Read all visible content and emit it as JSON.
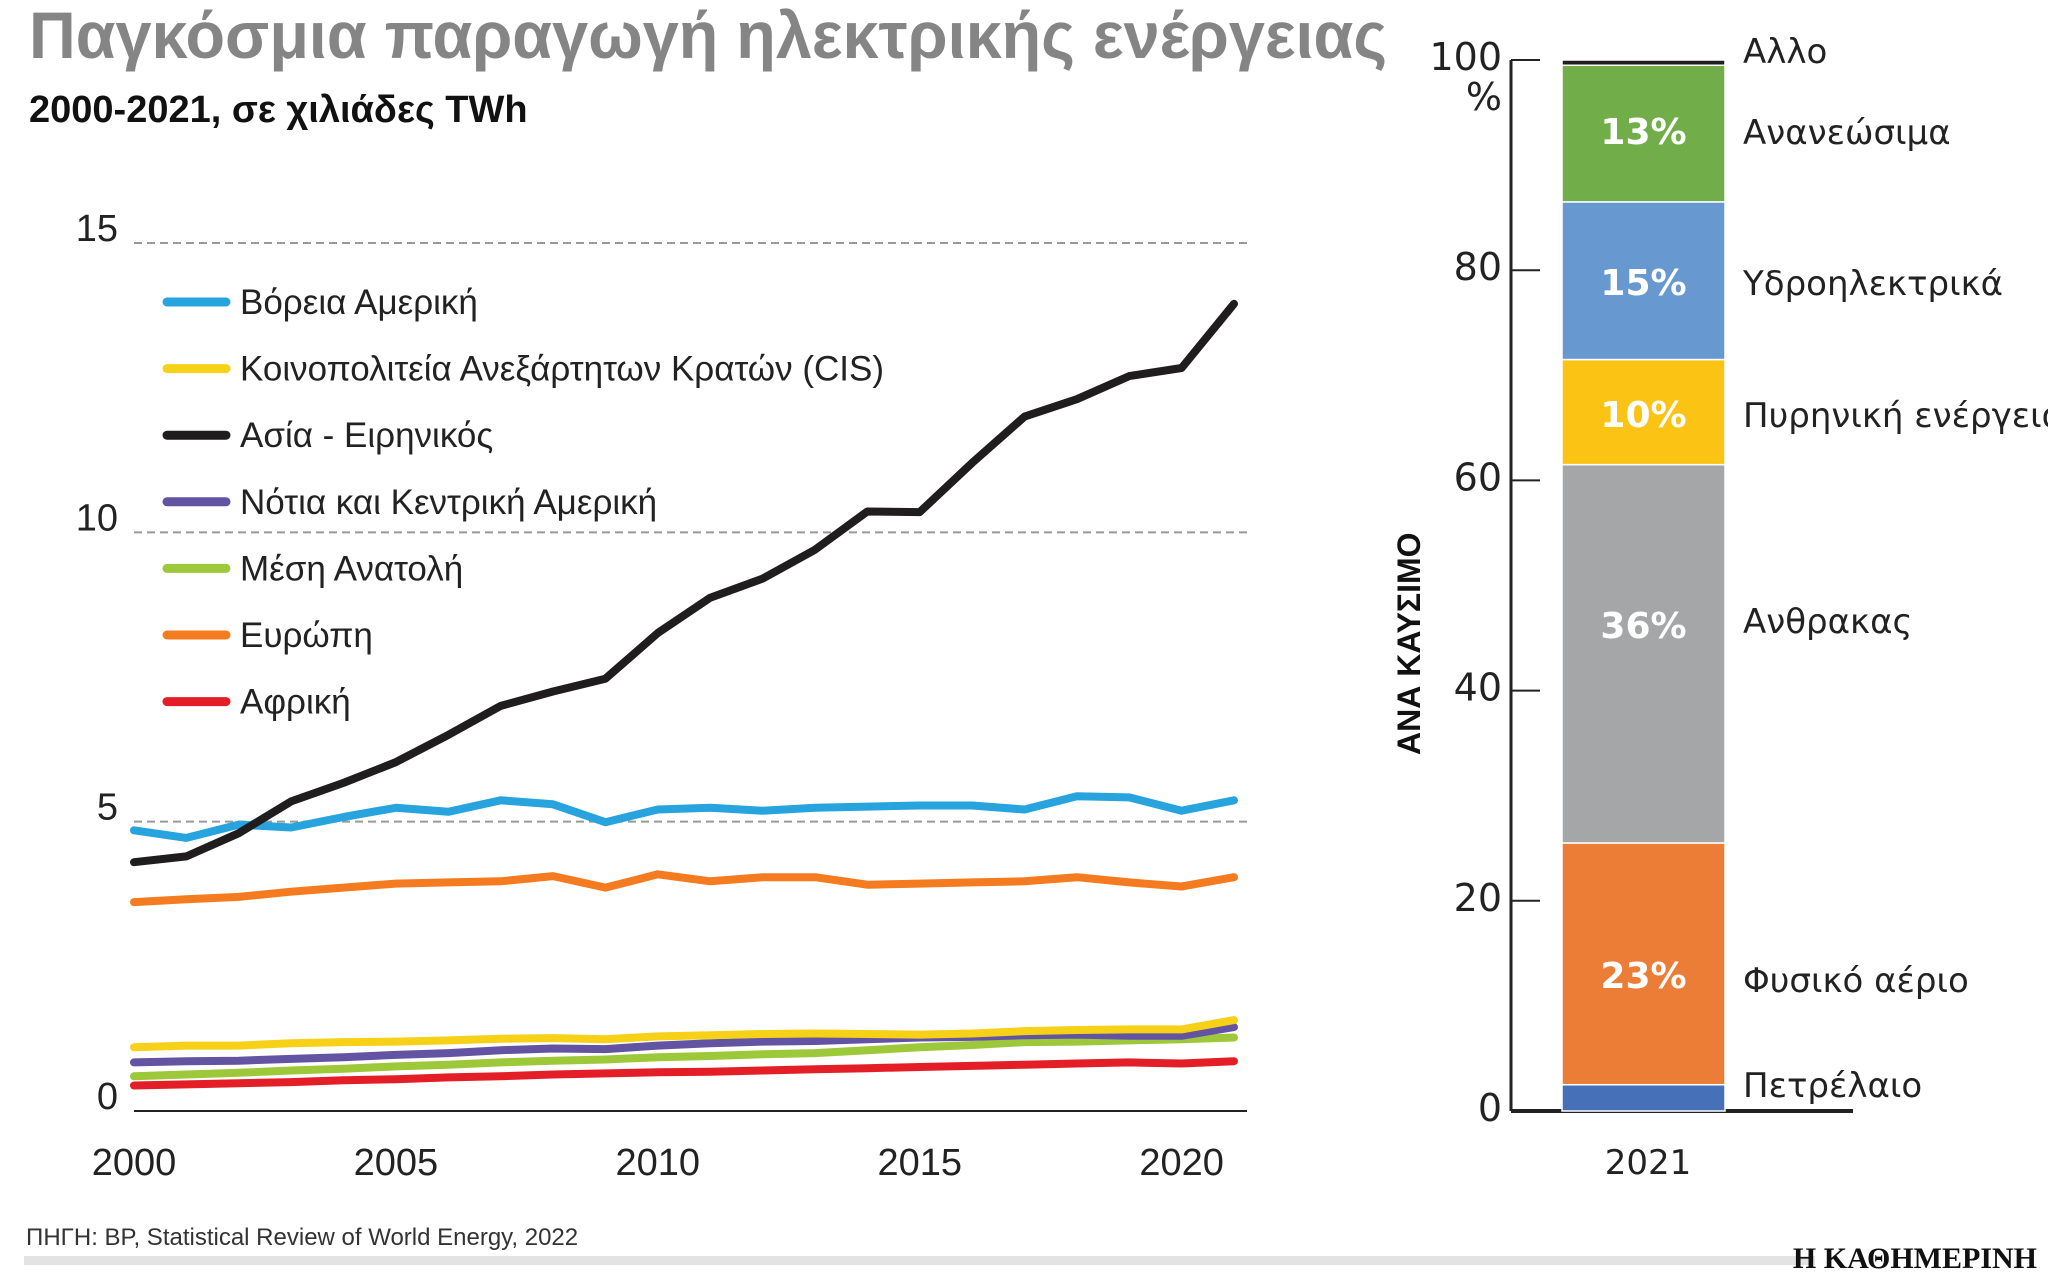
{
  "header": {
    "title": "Παγκόσμια παραγωγή ηλεκτρικής ενέργειας",
    "subtitle": "2000-2021, σε χιλιάδες TWh"
  },
  "footer": {
    "source": "ΠΗΓΗ: BP, Statistical Review of World Energy, 2022",
    "logo": "Η ΚΑΘΗΜΕΡΙΝΗ"
  },
  "chart_data": [
    {
      "type": "line",
      "x": [
        2000,
        2001,
        2002,
        2003,
        2004,
        2005,
        2006,
        2007,
        2008,
        2009,
        2010,
        2011,
        2012,
        2013,
        2014,
        2015,
        2016,
        2017,
        2018,
        2019,
        2020,
        2021
      ],
      "xticks": [
        "2000",
        "2005",
        "2010",
        "2015",
        "2020"
      ],
      "yticks": [
        "0",
        "5",
        "10",
        "15"
      ],
      "ylim": [
        0,
        15
      ],
      "grid": "horizontal dashed",
      "legend": "top-left",
      "series": [
        {
          "name": "Βόρεια Αμερική",
          "color": "#27a3dd",
          "values": [
            4.85,
            4.72,
            4.95,
            4.9,
            5.08,
            5.24,
            5.17,
            5.37,
            5.3,
            4.99,
            5.21,
            5.24,
            5.19,
            5.24,
            5.26,
            5.28,
            5.28,
            5.21,
            5.44,
            5.42,
            5.19,
            5.37
          ]
        },
        {
          "name": "Κοινοπολιτεία Ανεξάρτητων Κρατών (CIS)",
          "color": "#f7d117",
          "values": [
            1.1,
            1.13,
            1.13,
            1.17,
            1.19,
            1.2,
            1.22,
            1.25,
            1.26,
            1.24,
            1.29,
            1.31,
            1.33,
            1.34,
            1.33,
            1.32,
            1.34,
            1.38,
            1.4,
            1.41,
            1.41,
            1.57
          ]
        },
        {
          "name": "Ασία - Ειρηνικός",
          "color": "#1f1d1d",
          "values": [
            4.3,
            4.4,
            4.8,
            5.35,
            5.67,
            6.03,
            6.5,
            7.0,
            7.25,
            7.47,
            8.26,
            8.87,
            9.2,
            9.7,
            10.36,
            10.35,
            11.2,
            12.0,
            12.3,
            12.7,
            12.84,
            13.95
          ]
        },
        {
          "name": "Νότια και Κεντρική Αμερική",
          "color": "#6353a3",
          "values": [
            0.84,
            0.86,
            0.87,
            0.9,
            0.93,
            0.97,
            1.0,
            1.05,
            1.08,
            1.07,
            1.13,
            1.17,
            1.2,
            1.21,
            1.24,
            1.27,
            1.28,
            1.31,
            1.32,
            1.3,
            1.3,
            1.45
          ]
        },
        {
          "name": "Μέση Ανατολή",
          "color": "#9cc83a",
          "values": [
            0.6,
            0.63,
            0.66,
            0.7,
            0.73,
            0.77,
            0.8,
            0.84,
            0.87,
            0.89,
            0.93,
            0.95,
            0.98,
            1.0,
            1.05,
            1.1,
            1.14,
            1.19,
            1.2,
            1.22,
            1.24,
            1.27
          ]
        },
        {
          "name": "Ευρώπη",
          "color": "#f47b20",
          "values": [
            3.61,
            3.66,
            3.7,
            3.79,
            3.86,
            3.93,
            3.95,
            3.97,
            4.06,
            3.86,
            4.09,
            3.97,
            4.04,
            4.04,
            3.91,
            3.93,
            3.95,
            3.97,
            4.04,
            3.95,
            3.88,
            4.04
          ]
        },
        {
          "name": "Αφρική",
          "color": "#e41e26",
          "values": [
            0.44,
            0.46,
            0.48,
            0.5,
            0.53,
            0.55,
            0.58,
            0.6,
            0.63,
            0.65,
            0.67,
            0.68,
            0.7,
            0.72,
            0.74,
            0.76,
            0.78,
            0.8,
            0.82,
            0.84,
            0.82,
            0.86
          ]
        }
      ]
    },
    {
      "type": "bar",
      "stacked": true,
      "categories": [
        "2021"
      ],
      "ylabel": "ΑΝΑ ΚΑΥΣΙΜΟ",
      "yunit": "%",
      "ylim": [
        0,
        100
      ],
      "yticks": [
        "0",
        "20",
        "40",
        "60",
        "80",
        "100"
      ],
      "series": [
        {
          "name": "Πετρέλαιο",
          "value": 2.5,
          "label": "2,5%",
          "color": "#4670b8"
        },
        {
          "name": "Φυσικό αέριο",
          "value": 23,
          "label": "23%",
          "color": "#ec7d36"
        },
        {
          "name": "Ανθρακας",
          "value": 36,
          "label": "36%",
          "color": "#a5a6a8"
        },
        {
          "name": "Πυρηνική ενέργεια",
          "value": 10,
          "label": "10%",
          "color": "#fbc314"
        },
        {
          "name": "Υδροηλεκτρικά",
          "value": 15,
          "label": "15%",
          "color": "#6898d0"
        },
        {
          "name": "Ανανεώσιμα",
          "value": 13,
          "label": "13%",
          "color": "#71ad48"
        },
        {
          "name": "Αλλο",
          "value": 0.5,
          "label": "0,5%",
          "color": "#1f1d1d"
        }
      ]
    }
  ]
}
